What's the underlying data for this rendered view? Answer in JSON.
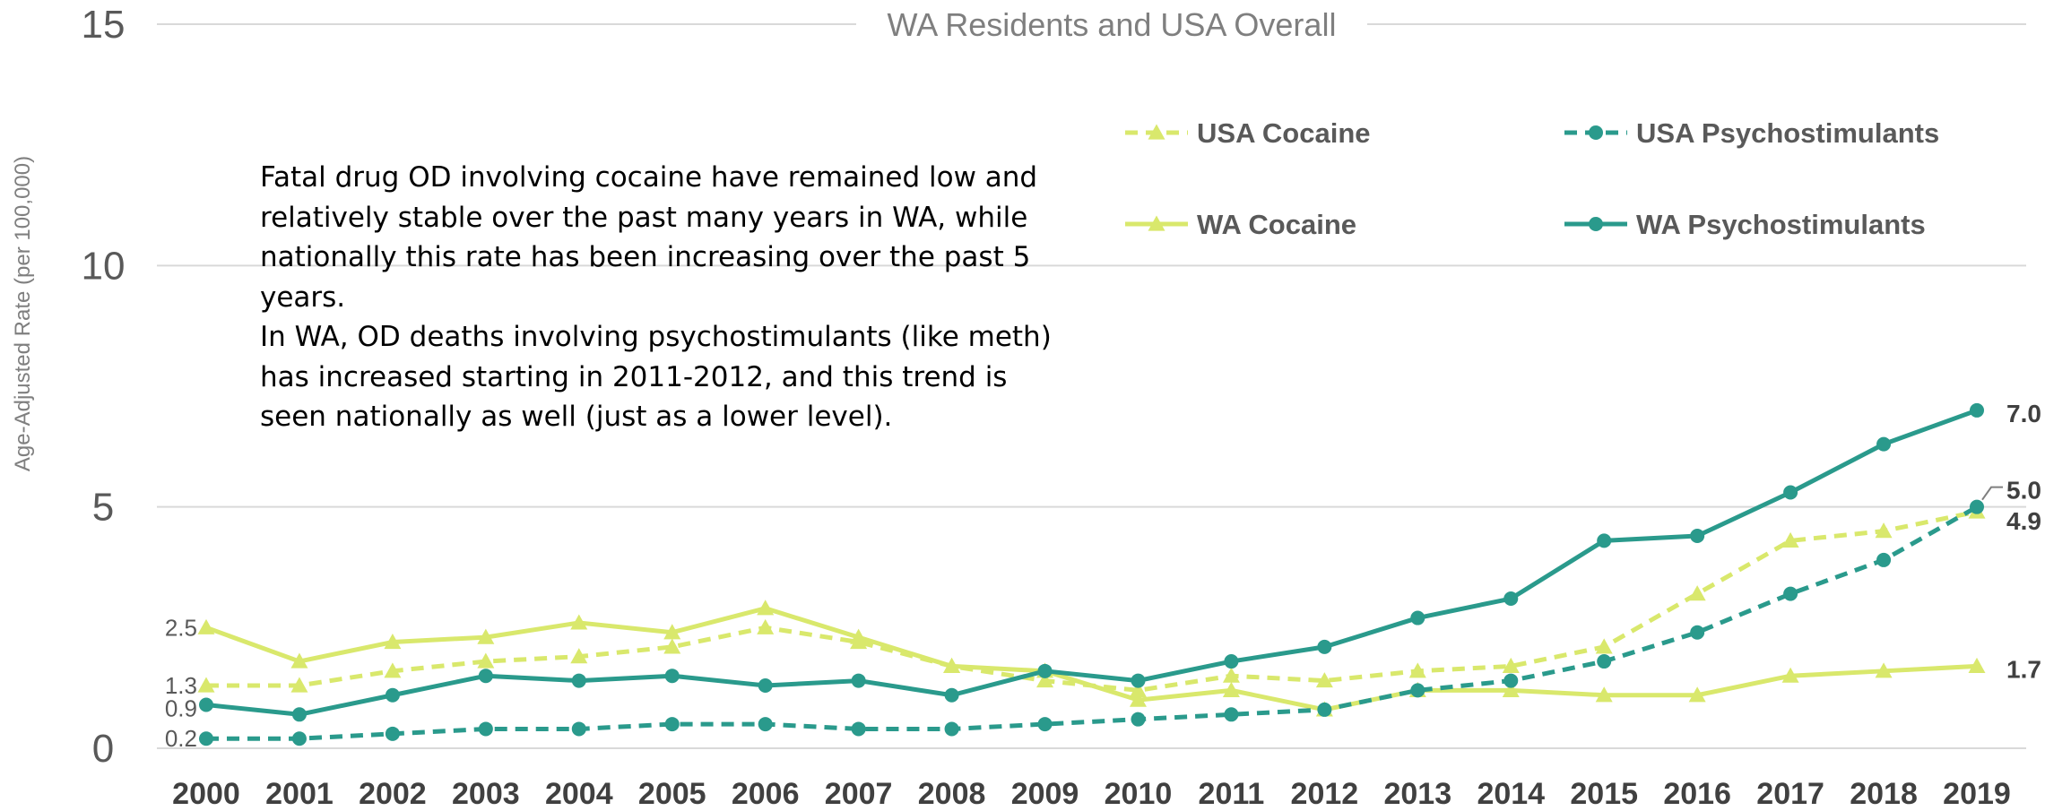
{
  "chart_data": {
    "type": "line",
    "title": "WA Residents and USA Overall",
    "ylabel": "Age-Adjusted Rate  (per 100,000)",
    "xlabel": "",
    "ylim": [
      0,
      15
    ],
    "yticks": [
      "0",
      "5",
      "10",
      "15"
    ],
    "grid": true,
    "legend_position": "top-right",
    "categories": [
      "2000",
      "2001",
      "2002",
      "2003",
      "2004",
      "2005",
      "2006",
      "2007",
      "2008",
      "2009",
      "2010",
      "2011",
      "2012",
      "2013",
      "2014",
      "2015",
      "2016",
      "2017",
      "2018",
      "2019"
    ],
    "series": [
      {
        "name": "USA Cocaine",
        "style": "dashed",
        "marker": "triangle",
        "color": "#d9e86c",
        "values": [
          1.3,
          1.3,
          1.6,
          1.8,
          1.9,
          2.1,
          2.5,
          2.2,
          1.7,
          1.4,
          1.2,
          1.5,
          1.4,
          1.6,
          1.7,
          2.1,
          3.2,
          4.3,
          4.5,
          4.9
        ]
      },
      {
        "name": "USA Psychostimulants",
        "style": "dashed",
        "marker": "circle",
        "color": "#2a9a8c",
        "values": [
          0.2,
          0.2,
          0.3,
          0.4,
          0.4,
          0.5,
          0.5,
          0.4,
          0.4,
          0.5,
          0.6,
          0.7,
          0.8,
          1.2,
          1.4,
          1.8,
          2.4,
          3.2,
          3.9,
          5.0
        ]
      },
      {
        "name": "WA Cocaine",
        "style": "solid",
        "marker": "triangle",
        "color": "#d9e86c",
        "values": [
          2.5,
          1.8,
          2.2,
          2.3,
          2.6,
          2.4,
          2.9,
          2.3,
          1.7,
          1.6,
          1.0,
          1.2,
          0.8,
          1.2,
          1.2,
          1.1,
          1.1,
          1.5,
          1.6,
          1.7
        ]
      },
      {
        "name": "WA Psychostimulants",
        "style": "solid",
        "marker": "circle",
        "color": "#2a9a8c",
        "values": [
          0.9,
          0.7,
          1.1,
          1.5,
          1.4,
          1.5,
          1.3,
          1.4,
          1.1,
          1.6,
          1.4,
          1.8,
          2.1,
          2.7,
          3.1,
          4.3,
          4.4,
          5.3,
          6.3,
          7.0
        ]
      }
    ],
    "data_labels": [
      {
        "series": "WA Cocaine",
        "index": 0,
        "text": "2.5"
      },
      {
        "series": "USA Cocaine",
        "index": 0,
        "text": "1.3"
      },
      {
        "series": "WA Psychostimulants",
        "index": 0,
        "text": "0.9"
      },
      {
        "series": "USA Psychostimulants",
        "index": 0,
        "text": "0.2"
      },
      {
        "series": "WA Psychostimulants",
        "index": 19,
        "text": "7.0"
      },
      {
        "series": "USA Psychostimulants",
        "index": 19,
        "text": "5.0"
      },
      {
        "series": "USA Cocaine",
        "index": 19,
        "text": "4.9"
      },
      {
        "series": "WA Cocaine",
        "index": 19,
        "text": "1.7"
      }
    ],
    "annotation": [
      "Fatal drug OD involving cocaine have remained low and",
      "relatively stable over the past many years in WA, while",
      "nationally this rate has been increasing over the past 5",
      "years.",
      "In WA, OD deaths involving psychostimulants (like meth)",
      "has increased starting in 2011-2012, and this trend is",
      "seen nationally as well (just as a lower level)."
    ]
  }
}
